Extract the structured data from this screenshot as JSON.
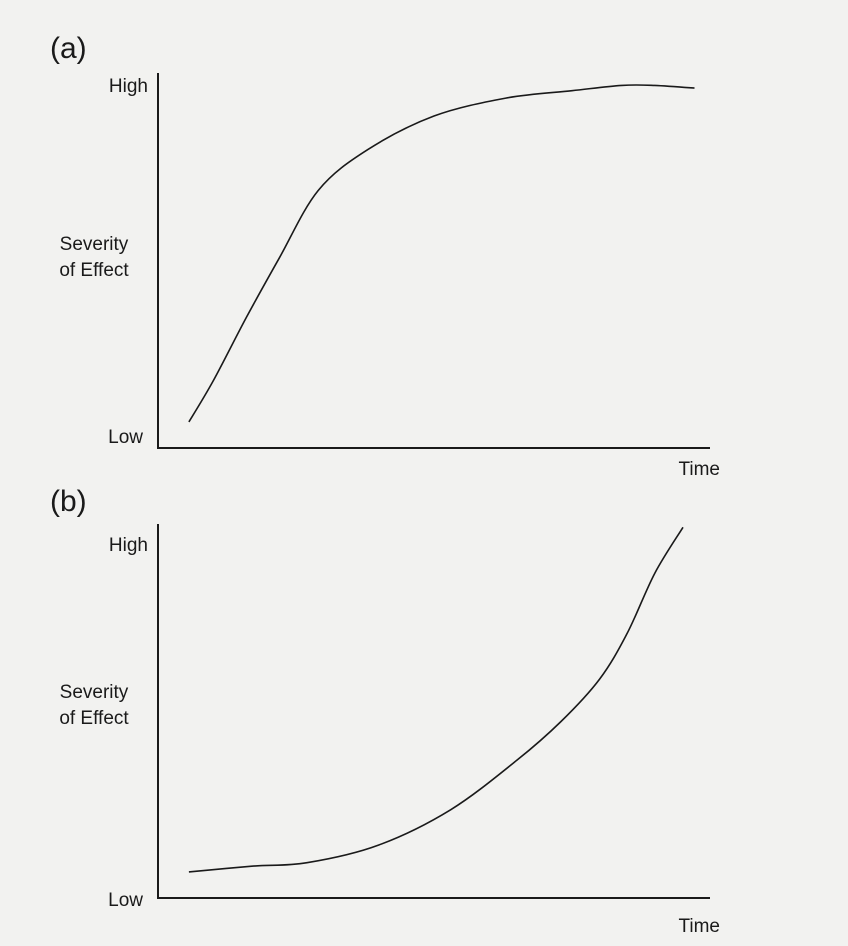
{
  "chart_data": [
    {
      "type": "line",
      "panel_label": "(a)",
      "ylabel": [
        "Severity",
        "of Effect"
      ],
      "xlabel": "Time",
      "y_tick_labels": [
        "High",
        "Low"
      ],
      "x_range": [
        0,
        1
      ],
      "y_range": [
        0,
        1
      ],
      "series": [
        {
          "x": [
            0.056,
            0.1,
            0.16,
            0.22,
            0.29,
            0.38,
            0.5,
            0.63,
            0.75,
            0.84,
            0.9,
            0.972
          ],
          "y": [
            0.07,
            0.18,
            0.35,
            0.51,
            0.69,
            0.8,
            0.89,
            0.938,
            0.958,
            0.972,
            0.972,
            0.965
          ]
        }
      ],
      "grid": false
    },
    {
      "type": "line",
      "panel_label": "(b)",
      "ylabel": [
        "Severity",
        "of Effect"
      ],
      "xlabel": "Time",
      "y_tick_labels": [
        "High",
        "Low"
      ],
      "x_range": [
        0,
        1
      ],
      "y_range": [
        0,
        1
      ],
      "series": [
        {
          "x": [
            0.056,
            0.17,
            0.27,
            0.4,
            0.53,
            0.65,
            0.73,
            0.8,
            0.85,
            0.9,
            0.951
          ],
          "y": [
            0.074,
            0.09,
            0.1,
            0.15,
            0.25,
            0.39,
            0.5,
            0.62,
            0.75,
            0.92,
            1.05
          ]
        }
      ],
      "grid": false
    }
  ]
}
